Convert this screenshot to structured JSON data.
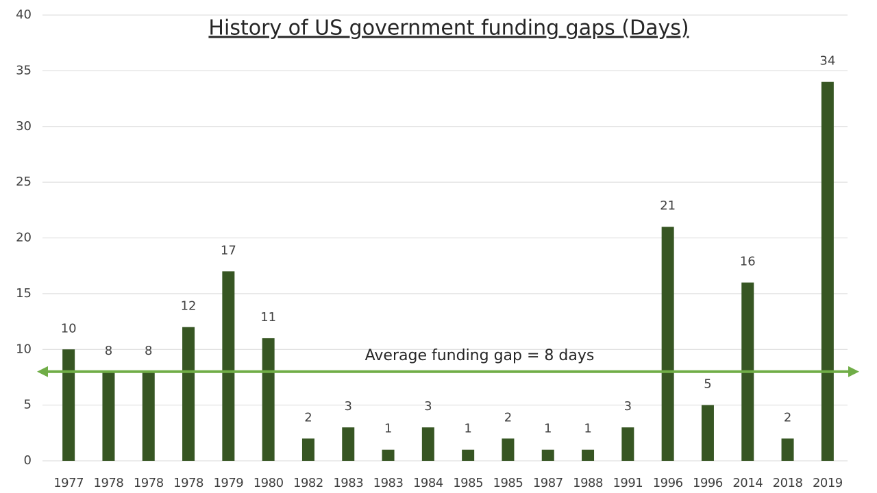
{
  "chart_data": {
    "type": "bar",
    "title": "History of US government funding gaps (Days)",
    "categories": [
      "1977",
      "1978",
      "1978",
      "1978",
      "1979",
      "1980",
      "1982",
      "1983",
      "1983",
      "1984",
      "1985",
      "1985",
      "1987",
      "1988",
      "1991",
      "1996",
      "1996",
      "2014",
      "2018",
      "2019"
    ],
    "values": [
      10,
      8,
      8,
      12,
      17,
      11,
      2,
      3,
      1,
      3,
      1,
      2,
      1,
      1,
      3,
      21,
      5,
      16,
      2,
      34
    ],
    "color": "#375623",
    "ylim": [
      0,
      40
    ],
    "yticks": [
      0,
      5,
      10,
      15,
      20,
      25,
      30,
      35,
      40
    ],
    "grid": true,
    "reference_line": {
      "value": 8,
      "label": "Average funding gap = 8 days",
      "color": "#70ad47"
    }
  }
}
